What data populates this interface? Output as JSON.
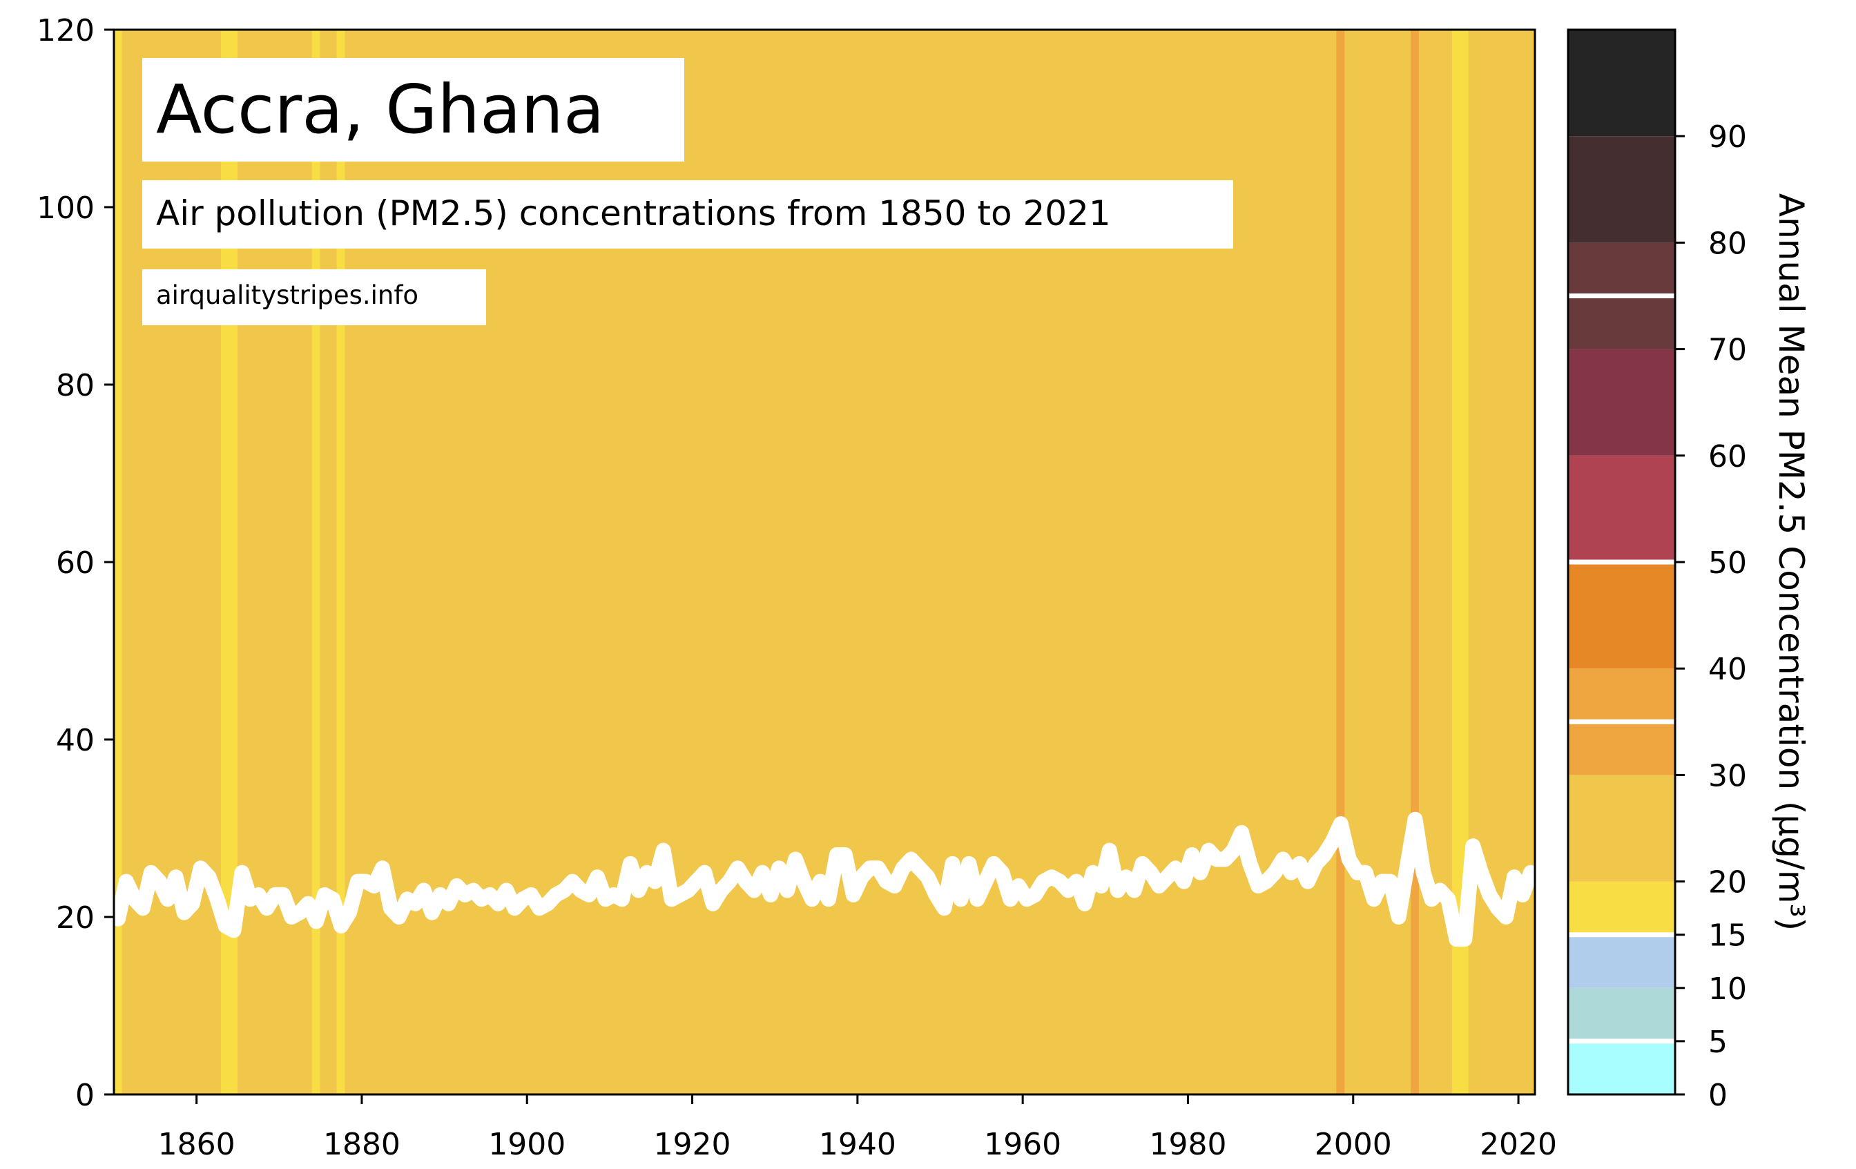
{
  "chart_data": {
    "type": "line",
    "title": "Accra, Ghana",
    "subtitle": "Air pollution (PM2.5) concentrations from 1850 to 2021",
    "source": "airqualitystripes.info",
    "xlim": [
      1850,
      2022
    ],
    "ylim": [
      0,
      120
    ],
    "x_ticks": [
      1860,
      1880,
      1900,
      1920,
      1940,
      1960,
      1980,
      2000,
      2020
    ],
    "y_ticks": [
      0,
      20,
      40,
      60,
      80,
      100,
      120
    ],
    "grid": false,
    "legend": "none",
    "x": [
      1850,
      1851,
      1852,
      1853,
      1854,
      1855,
      1856,
      1857,
      1858,
      1859,
      1860,
      1861,
      1862,
      1863,
      1864,
      1865,
      1866,
      1867,
      1868,
      1869,
      1870,
      1871,
      1872,
      1873,
      1874,
      1875,
      1876,
      1877,
      1878,
      1879,
      1880,
      1881,
      1882,
      1883,
      1884,
      1885,
      1886,
      1887,
      1888,
      1889,
      1890,
      1891,
      1892,
      1893,
      1894,
      1895,
      1896,
      1897,
      1898,
      1899,
      1900,
      1901,
      1902,
      1903,
      1904,
      1905,
      1906,
      1907,
      1908,
      1909,
      1910,
      1911,
      1912,
      1913,
      1914,
      1915,
      1916,
      1917,
      1918,
      1919,
      1920,
      1921,
      1922,
      1923,
      1924,
      1925,
      1926,
      1927,
      1928,
      1929,
      1930,
      1931,
      1932,
      1933,
      1934,
      1935,
      1936,
      1937,
      1938,
      1939,
      1940,
      1941,
      1942,
      1943,
      1944,
      1945,
      1946,
      1947,
      1948,
      1949,
      1950,
      1951,
      1952,
      1953,
      1954,
      1955,
      1956,
      1957,
      1958,
      1959,
      1960,
      1961,
      1962,
      1963,
      1964,
      1965,
      1966,
      1967,
      1968,
      1969,
      1970,
      1971,
      1972,
      1973,
      1974,
      1975,
      1976,
      1977,
      1978,
      1979,
      1980,
      1981,
      1982,
      1983,
      1984,
      1985,
      1986,
      1987,
      1988,
      1989,
      1990,
      1991,
      1992,
      1993,
      1994,
      1995,
      1996,
      1997,
      1998,
      1999,
      2000,
      2001,
      2002,
      2003,
      2004,
      2005,
      2006,
      2007,
      2008,
      2009,
      2010,
      2011,
      2012,
      2013,
      2014,
      2015,
      2016,
      2017,
      2018,
      2019,
      2020,
      2021
    ],
    "series": [
      {
        "values": [
          19.8,
          24.0,
          22.0,
          21.0,
          25.0,
          24.0,
          22.0,
          24.5,
          20.5,
          21.5,
          25.5,
          24.5,
          22.0,
          19.0,
          18.5,
          25.0,
          22.0,
          22.5,
          21.0,
          22.5,
          22.5,
          20.0,
          20.5,
          21.5,
          19.5,
          22.5,
          22.0,
          19.0,
          20.5,
          24.0,
          24.0,
          23.5,
          25.5,
          21.0,
          20.0,
          22.0,
          21.5,
          23.0,
          20.5,
          22.5,
          21.5,
          23.5,
          22.5,
          23.0,
          22.0,
          22.5,
          21.5,
          23.0,
          21.0,
          22.0,
          22.5,
          21.0,
          21.5,
          22.5,
          23.0,
          24.0,
          23.0,
          22.5,
          24.5,
          22.0,
          22.5,
          22.0,
          26.0,
          23.0,
          25.0,
          24.0,
          27.5,
          22.0,
          22.5,
          23.0,
          24.0,
          25.0,
          21.5,
          23.0,
          24.0,
          25.5,
          24.0,
          23.0,
          25.0,
          22.5,
          25.5,
          23.0,
          26.5,
          24.0,
          22.0,
          24.0,
          22.0,
          27.0,
          27.0,
          22.5,
          24.5,
          25.5,
          25.5,
          24.0,
          23.5,
          25.5,
          26.5,
          25.5,
          24.5,
          22.5,
          21.0,
          26.0,
          22.0,
          26.0,
          22.0,
          24.0,
          26.0,
          25.0,
          22.0,
          23.5,
          22.0,
          22.5,
          24.0,
          24.5,
          24.0,
          23.0,
          24.0,
          21.5,
          25.0,
          23.5,
          27.5,
          23.0,
          24.5,
          23.0,
          26.0,
          25.0,
          23.5,
          24.5,
          25.5,
          24.0,
          27.0,
          25.0,
          27.5,
          26.5,
          26.5,
          27.5,
          29.5,
          26.0,
          23.5,
          24.0,
          25.0,
          26.5,
          25.0,
          26.0,
          24.0,
          26.0,
          27.0,
          28.5,
          30.5,
          26.5,
          25.0,
          25.0,
          22.0,
          24.0,
          24.0,
          20.0,
          25.5,
          31.0,
          25.0,
          22.0,
          23.0,
          22.0,
          17.5,
          17.5,
          28.0,
          25.0,
          22.5,
          21.0,
          20.0,
          24.5,
          22.5,
          25.0
        ]
      }
    ],
    "colorbar": {
      "label": "Annual Mean PM2.5 Concentration (μg/m³)",
      "tick_values": [
        0,
        5,
        10,
        15,
        20,
        30,
        40,
        50,
        60,
        70,
        80,
        90
      ],
      "bins": [
        {
          "from": 0,
          "to": 5,
          "color": "#a8fdff"
        },
        {
          "from": 5,
          "to": 10,
          "color": "#addad8"
        },
        {
          "from": 10,
          "to": 15,
          "color": "#b0cdeb"
        },
        {
          "from": 15,
          "to": 20,
          "color": "#f8dd45"
        },
        {
          "from": 20,
          "to": 30,
          "color": "#f1c74b"
        },
        {
          "from": 30,
          "to": 40,
          "color": "#efa640"
        },
        {
          "from": 40,
          "to": 50,
          "color": "#e78826"
        },
        {
          "from": 50,
          "to": 60,
          "color": "#af4352"
        },
        {
          "from": 60,
          "to": 70,
          "color": "#853646"
        },
        {
          "from": 70,
          "to": 80,
          "color": "#683a3c"
        },
        {
          "from": 80,
          "to": 90,
          "color": "#452e30"
        },
        {
          "from": 90,
          "to": 100,
          "color": "#252525"
        }
      ],
      "guideline_values": [
        5,
        15,
        35,
        50,
        75
      ],
      "guideline_color": "#ffffff"
    },
    "line_color": "#ffffff"
  }
}
